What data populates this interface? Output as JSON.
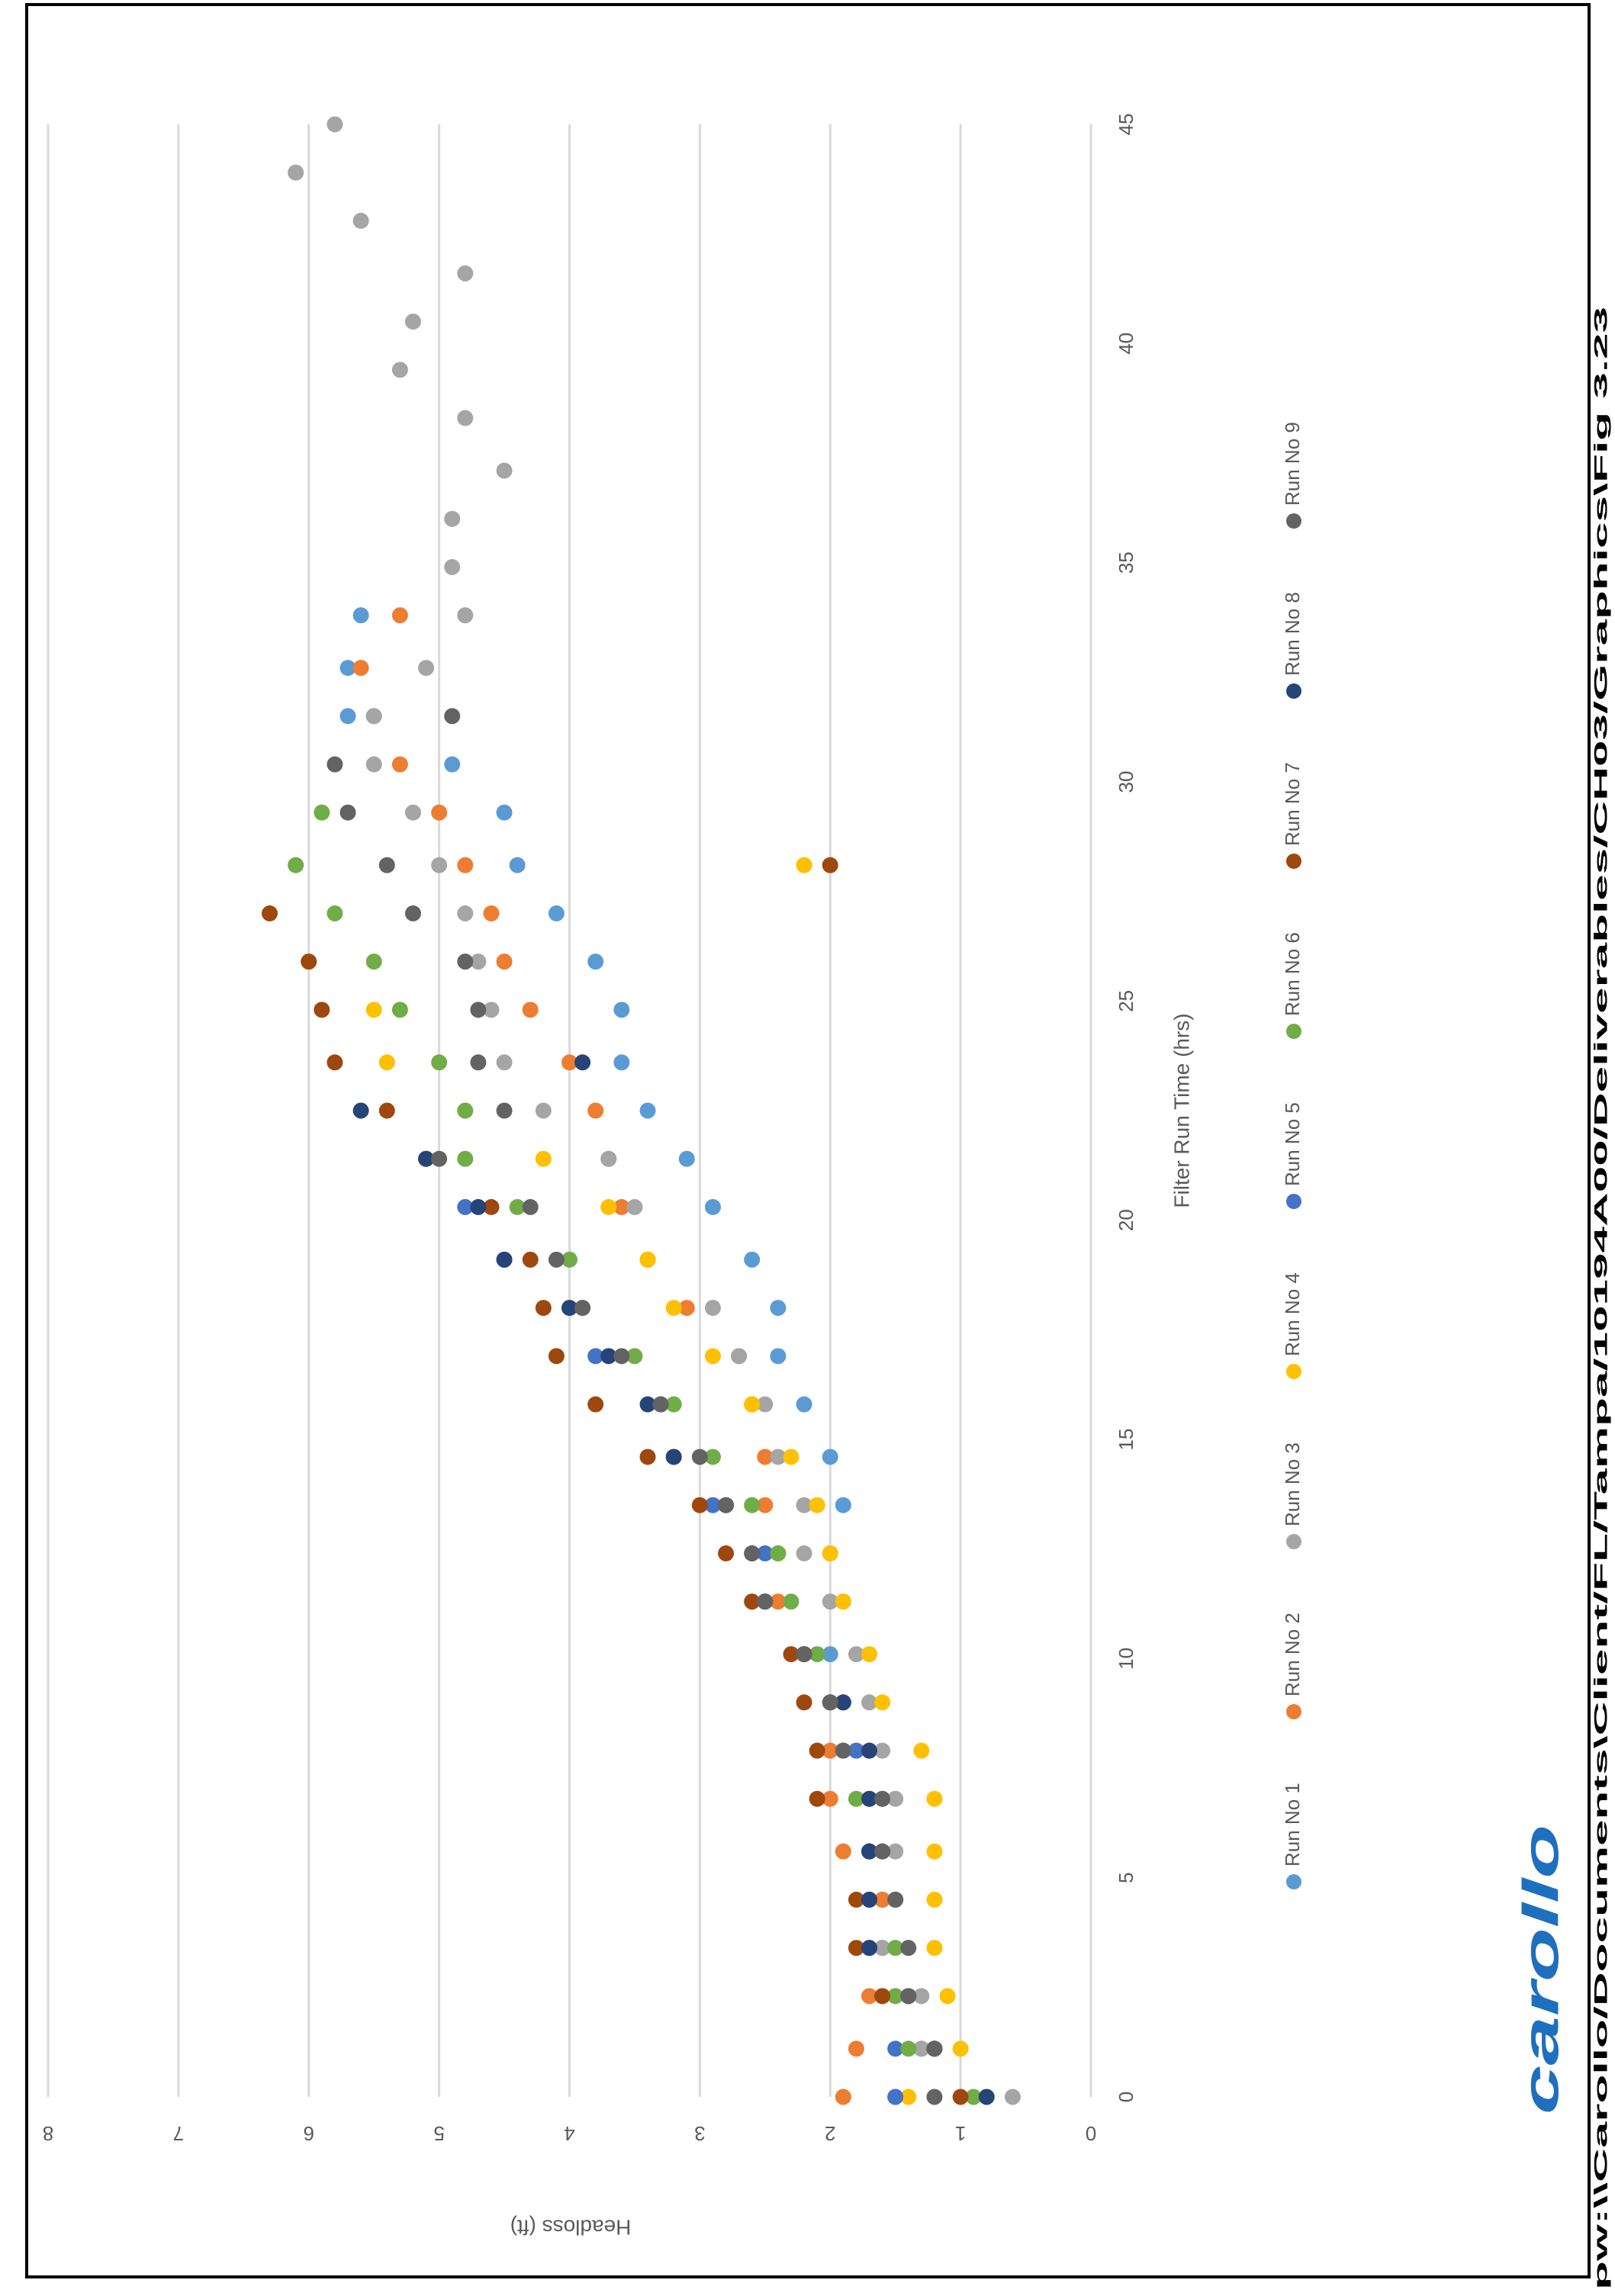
{
  "chart_data": {
    "type": "scatter",
    "x_label": "Filter Run Time (hrs)",
    "y_label": "Headloss (ft)",
    "xlim": [
      0,
      45
    ],
    "xticks": [
      0,
      5,
      10,
      15,
      20,
      25,
      30,
      35,
      40,
      45
    ],
    "ylim": [
      0,
      8
    ],
    "yticks": [
      0,
      1,
      2,
      3,
      4,
      5,
      6,
      7,
      8
    ],
    "grid": true,
    "legend": "bottom",
    "rotated": true,
    "series": [
      {
        "name": "Run No 1",
        "color": "#5b9bd5",
        "x": [
          0,
          1.1,
          2.3,
          3.4,
          4.5,
          5.6,
          6.8,
          7.9,
          9,
          10.1,
          11.3,
          12.4,
          13.5,
          14.6,
          15.8,
          16.9,
          18,
          19.1,
          20.3,
          21.4,
          22.5,
          23.6,
          24.8,
          25.9,
          27,
          28.1,
          29.3,
          30.4,
          31.5,
          32.6,
          33.8
        ],
        "values": [
          1.5,
          1.3,
          1.4,
          1.6,
          1.6,
          1.7,
          1.6,
          1.7,
          1.9,
          2.0,
          1.9,
          2.0,
          1.9,
          2.0,
          2.2,
          2.4,
          2.4,
          2.6,
          2.9,
          3.1,
          3.4,
          3.6,
          3.6,
          3.8,
          4.1,
          4.4,
          4.5,
          4.9,
          5.7,
          5.7,
          5.6
        ]
      },
      {
        "name": "Run No 2",
        "color": "#ed7d31",
        "x": [
          0,
          1.1,
          2.3,
          3.4,
          4.5,
          5.6,
          6.8,
          7.9,
          9,
          10.1,
          11.3,
          12.4,
          13.5,
          14.6,
          15.8,
          16.9,
          18,
          19.1,
          20.3,
          21.4,
          22.5,
          23.6,
          24.8,
          25.9,
          27,
          28.1,
          29.3,
          30.4,
          31.5,
          32.6,
          33.8
        ],
        "values": [
          1.9,
          1.8,
          1.7,
          1.6,
          1.6,
          1.9,
          2.0,
          2.0,
          2.0,
          2.2,
          2.4,
          2.4,
          2.5,
          2.5,
          2.6,
          2.7,
          3.1,
          3.4,
          3.6,
          3.7,
          3.8,
          4.0,
          4.3,
          4.5,
          4.6,
          4.8,
          5.0,
          5.3,
          5.5,
          5.6,
          5.3
        ]
      },
      {
        "name": "Run No 3",
        "color": "#a5a5a5",
        "x": [
          0,
          1.1,
          2.3,
          3.4,
          4.5,
          5.6,
          6.8,
          7.9,
          9,
          10.1,
          11.3,
          12.4,
          13.5,
          14.6,
          15.8,
          16.9,
          18,
          19.1,
          20.3,
          21.4,
          22.5,
          23.6,
          24.8,
          25.9,
          27,
          28.1,
          29.3,
          30.4,
          31.5,
          32.6,
          33.8,
          34.9,
          36,
          37.1,
          38.3,
          39.4,
          40.5,
          41.6,
          42.8,
          43.9,
          45
        ],
        "values": [
          0.6,
          1.3,
          1.3,
          1.6,
          1.5,
          1.5,
          1.5,
          1.6,
          1.7,
          1.8,
          2.0,
          2.2,
          2.2,
          2.4,
          2.5,
          2.7,
          2.9,
          3.4,
          3.5,
          3.7,
          4.2,
          4.5,
          4.6,
          4.7,
          4.8,
          5.0,
          5.2,
          5.5,
          5.5,
          5.1,
          4.8,
          4.9,
          4.9,
          4.5,
          4.8,
          5.3,
          5.2,
          4.8,
          5.6,
          6.1,
          5.8
        ]
      },
      {
        "name": "Run No 4",
        "color": "#ffc000",
        "x": [
          0,
          1.1,
          2.3,
          3.4,
          4.5,
          5.6,
          6.8,
          7.9,
          9,
          10.1,
          11.3,
          12.4,
          13.5,
          14.6,
          15.8,
          16.9,
          18,
          19.1,
          20.3,
          21.4,
          22.5,
          23.6,
          24.8,
          25.9,
          28.1
        ],
        "values": [
          1.4,
          1.0,
          1.1,
          1.2,
          1.2,
          1.2,
          1.2,
          1.3,
          1.6,
          1.7,
          1.9,
          2.0,
          2.1,
          2.3,
          2.6,
          2.9,
          3.2,
          3.4,
          3.7,
          4.2,
          4.8,
          5.4,
          5.5,
          6.0,
          2.2
        ]
      },
      {
        "name": "Run No 5",
        "color": "#4472c4",
        "x": [
          0,
          1.1,
          2.3,
          3.4,
          4.5,
          5.6,
          6.8,
          7.9,
          9,
          10.1,
          11.3,
          12.4,
          13.5,
          14.6,
          15.8,
          16.9,
          18,
          19.1,
          20.3
        ],
        "values": [
          1.5,
          1.5,
          1.6,
          1.7,
          1.7,
          1.7,
          1.7,
          1.8,
          2.0,
          2.2,
          2.5,
          2.5,
          2.9,
          3.2,
          3.3,
          3.8,
          4.0,
          4.5,
          4.8
        ]
      },
      {
        "name": "Run No 6",
        "color": "#70ad47",
        "x": [
          0,
          1.1,
          2.3,
          3.4,
          4.5,
          5.6,
          6.8,
          7.9,
          9,
          10.1,
          11.3,
          12.4,
          13.5,
          14.6,
          15.8,
          16.9,
          18,
          19.1,
          20.3,
          21.4,
          22.5,
          23.6,
          24.8,
          25.9,
          27,
          28.1,
          29.3
        ],
        "values": [
          0.9,
          1.4,
          1.5,
          1.5,
          1.5,
          1.7,
          1.8,
          1.9,
          1.9,
          2.1,
          2.3,
          2.4,
          2.6,
          2.9,
          3.2,
          3.5,
          3.9,
          4.0,
          4.4,
          4.8,
          4.8,
          5.0,
          5.3,
          5.5,
          5.8,
          6.1,
          5.9
        ]
      },
      {
        "name": "Run No 7",
        "color": "#9e480e",
        "x": [
          0,
          1.1,
          2.3,
          3.4,
          4.5,
          5.6,
          6.8,
          7.9,
          9,
          10.1,
          11.3,
          12.4,
          13.5,
          14.6,
          15.8,
          16.9,
          18,
          19.1,
          20.3,
          21.4,
          22.5,
          23.6,
          24.8,
          25.9,
          27,
          28.1
        ],
        "values": [
          1.0,
          1.2,
          1.6,
          1.8,
          1.8,
          1.6,
          2.1,
          2.1,
          2.2,
          2.3,
          2.6,
          2.8,
          3.0,
          3.4,
          3.8,
          4.1,
          4.2,
          4.3,
          4.6,
          5.1,
          5.4,
          5.8,
          5.9,
          6.0,
          6.3,
          2.0
        ]
      },
      {
        "name": "Run No 8",
        "color": "#264478",
        "x": [
          0,
          1.1,
          2.3,
          3.4,
          4.5,
          5.6,
          6.8,
          7.9,
          9,
          10.1,
          11.3,
          12.4,
          13.5,
          14.6,
          15.8,
          16.9,
          18,
          19.1,
          20.3,
          21.4,
          22.5,
          23.6
        ],
        "values": [
          0.8,
          1.2,
          1.4,
          1.7,
          1.7,
          1.7,
          1.7,
          1.7,
          1.9,
          2.2,
          2.5,
          2.6,
          2.8,
          3.2,
          3.4,
          3.7,
          4.0,
          4.5,
          4.7,
          5.1,
          5.6,
          3.9
        ]
      },
      {
        "name": "Run No 9",
        "color": "#636363",
        "x": [
          0,
          1.1,
          2.3,
          3.4,
          4.5,
          5.6,
          6.8,
          7.9,
          9,
          10.1,
          11.3,
          12.4,
          13.5,
          14.6,
          15.8,
          16.9,
          18,
          19.1,
          20.3,
          21.4,
          22.5,
          23.6,
          24.8,
          25.9,
          27,
          28.1,
          29.3,
          30.4,
          31.5
        ],
        "values": [
          1.2,
          1.2,
          1.4,
          1.4,
          1.5,
          1.6,
          1.6,
          1.9,
          2.0,
          2.2,
          2.5,
          2.6,
          2.8,
          3.0,
          3.3,
          3.6,
          3.9,
          4.1,
          4.3,
          5.0,
          4.5,
          4.7,
          4.7,
          4.8,
          5.2,
          5.4,
          5.7,
          5.8,
          4.9
        ]
      }
    ]
  },
  "footer": {
    "logo": "carollo",
    "path": "pw:\\\\Carollo/Documents\\Client/FL/Tampa/10194A00/Deliverables/CH03/Graphics\\Fig 3.23"
  }
}
